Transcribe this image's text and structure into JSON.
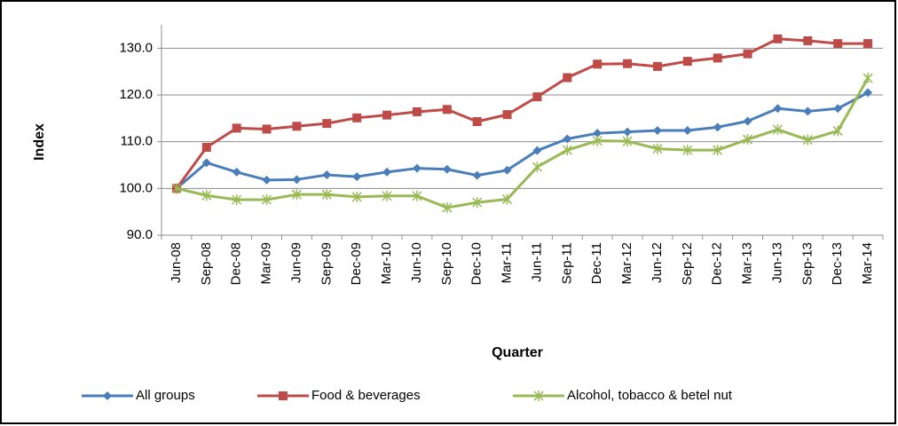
{
  "chart_data": {
    "type": "line",
    "x_label": "Quarter",
    "y_label": "Index",
    "categories": [
      "Jun-08",
      "Sep-08",
      "Dec-08",
      "Mar-09",
      "Jun-09",
      "Sep-09",
      "Dec-09",
      "Mar-10",
      "Jun-10",
      "Sep-10",
      "Dec-10",
      "Mar-11",
      "Jun-11",
      "Sep-11",
      "Dec-11",
      "Mar-12",
      "Jun-12",
      "Sep-12",
      "Dec-12",
      "Mar-13",
      "Jun-13",
      "Sep-13",
      "Dec-13",
      "Mar-14"
    ],
    "series": [
      {
        "name": "All groups",
        "color": "#4a7ebb",
        "marker": "diamond",
        "values": [
          100,
          105.5,
          103.5,
          101.8,
          101.9,
          102.9,
          102.5,
          103.5,
          104.3,
          104.1,
          102.8,
          103.9,
          108.1,
          110.6,
          111.8,
          112.1,
          112.4,
          112.4,
          113.1,
          114.4,
          117.1,
          116.5,
          117.1,
          120.5
        ]
      },
      {
        "name": "Food & beverages",
        "color": "#be4b48",
        "marker": "square",
        "values": [
          100,
          108.8,
          112.9,
          112.7,
          113.3,
          113.9,
          115.1,
          115.7,
          116.4,
          116.9,
          114.3,
          115.8,
          119.6,
          123.7,
          126.6,
          126.7,
          126.1,
          127.2,
          127.9,
          128.8,
          132.0,
          131.6,
          131.0,
          131.0
        ]
      },
      {
        "name": "Alcohol, tobacco & betel nut",
        "color": "#98b954",
        "marker": "asterisk",
        "values": [
          100,
          98.5,
          97.6,
          97.6,
          98.7,
          98.7,
          98.2,
          98.4,
          98.4,
          95.9,
          97.0,
          97.7,
          104.6,
          108.2,
          110.2,
          110.1,
          108.5,
          108.2,
          108.2,
          110.5,
          112.6,
          110.4,
          112.3,
          123.6
        ]
      }
    ],
    "ylim": [
      90,
      135
    ],
    "yticks": [
      {
        "value": 90,
        "label": "90.0"
      },
      {
        "value": 100,
        "label": "100.0"
      },
      {
        "value": 110,
        "label": "110.0"
      },
      {
        "value": 120,
        "label": "120.0"
      },
      {
        "value": 130,
        "label": "130.0"
      }
    ],
    "grid": true,
    "legend_position": "bottom"
  }
}
